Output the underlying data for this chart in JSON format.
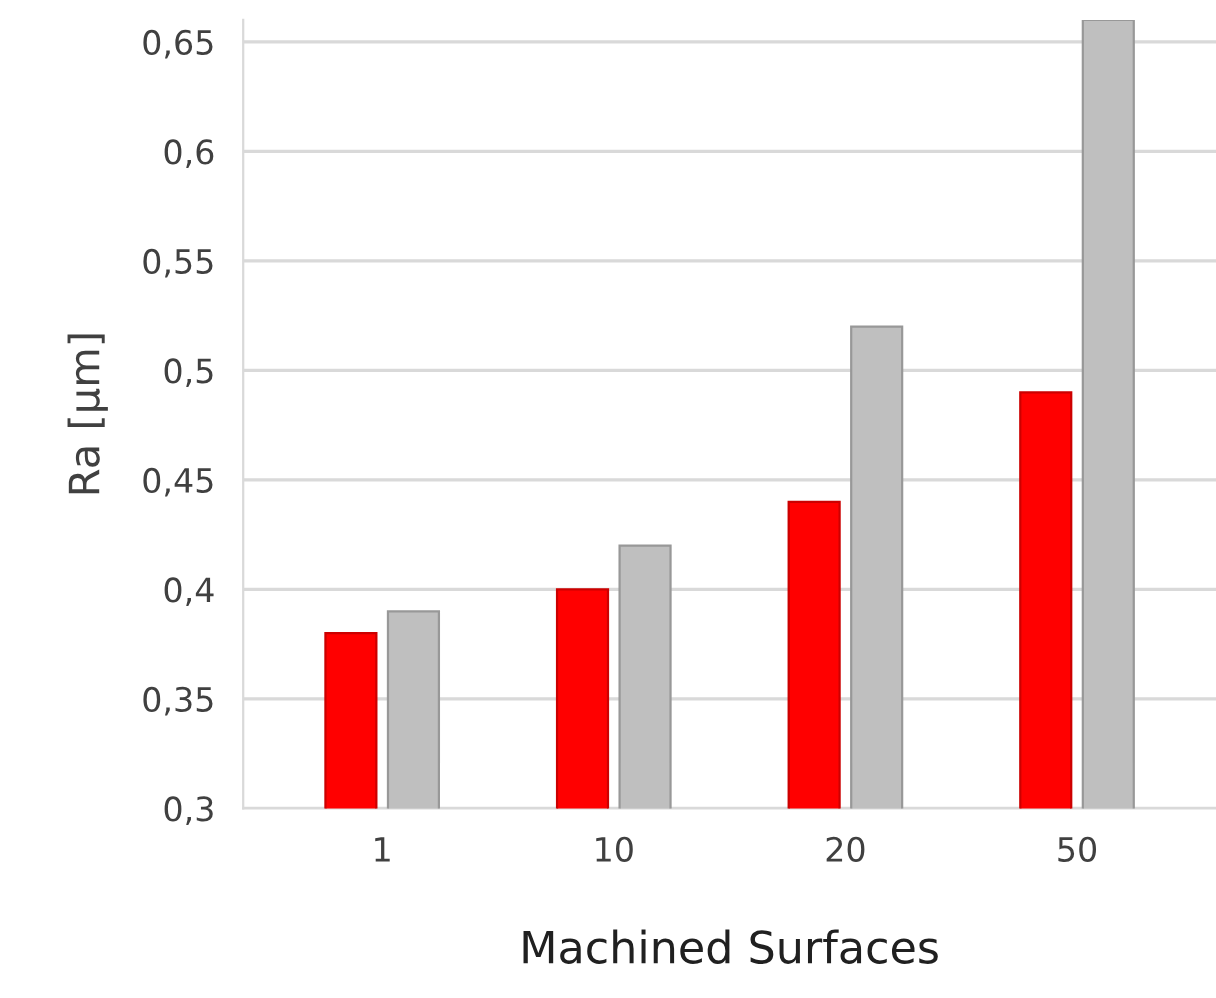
{
  "chart_data": {
    "type": "bar",
    "xlabel": "Machined Surfaces",
    "ylabel": "Ra [µm]",
    "categories": [
      "1",
      "10",
      "20",
      "50"
    ],
    "series": [
      {
        "color": "#ff0000",
        "values": [
          0.38,
          0.4,
          0.44,
          0.49
        ]
      },
      {
        "color": "#bfbfbf",
        "values": [
          0.39,
          0.42,
          0.52,
          0.66
        ]
      }
    ],
    "ylim": [
      0.3,
      0.66
    ],
    "yticks": [
      {
        "value": 0.3,
        "label": "0,3"
      },
      {
        "value": 0.35,
        "label": "0,35"
      },
      {
        "value": 0.4,
        "label": "0,4"
      },
      {
        "value": 0.45,
        "label": "0,45"
      },
      {
        "value": 0.5,
        "label": "0,5"
      },
      {
        "value": 0.55,
        "label": "0,55"
      },
      {
        "value": 0.6,
        "label": "0,6"
      },
      {
        "value": 0.65,
        "label": "0,65"
      }
    ],
    "grid": "y",
    "legend": false
  }
}
